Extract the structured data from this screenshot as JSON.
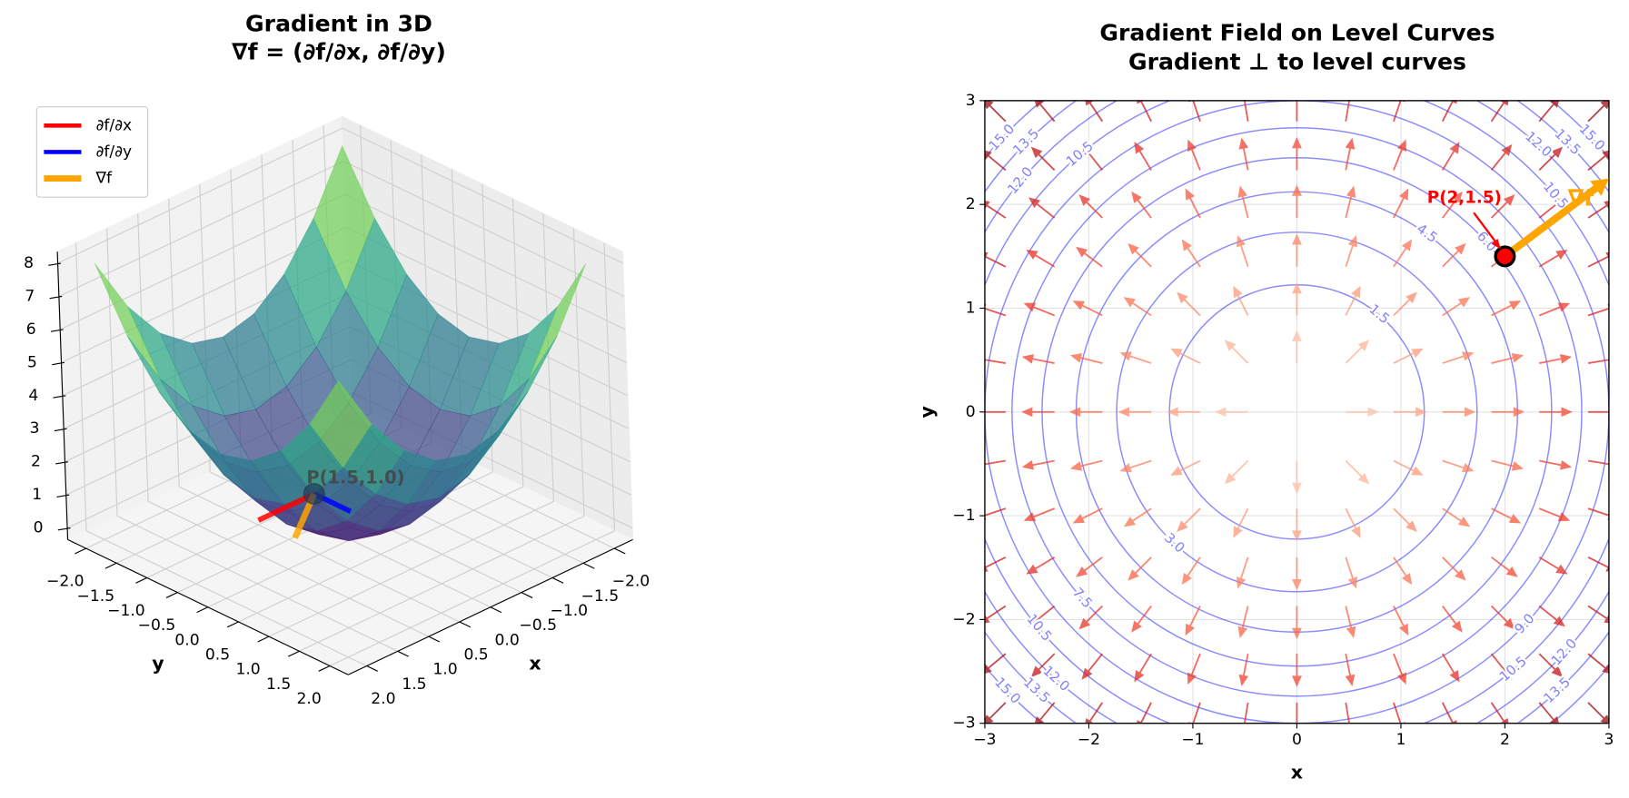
{
  "chart_data": [
    {
      "type": "surface3d",
      "title": [
        "Gradient in 3D",
        "∇f = (∂f/∂x, ∂f/∂y)"
      ],
      "xlabel": "x",
      "ylabel": "y",
      "x": [
        -2,
        -1.5,
        -1,
        -0.5,
        0,
        0.5,
        1,
        1.5,
        2
      ],
      "y": [
        -2,
        -1.5,
        -1,
        -0.5,
        0,
        0.5,
        1,
        1.5,
        2
      ],
      "z": [
        [
          8,
          6.25,
          5,
          4.25,
          4,
          4.25,
          5,
          6.25,
          8
        ],
        [
          6.25,
          4.5,
          3.25,
          2.5,
          2.25,
          2.5,
          3.25,
          4.5,
          6.25
        ],
        [
          5,
          3.25,
          2,
          1.25,
          1,
          1.25,
          2,
          3.25,
          5
        ],
        [
          4.25,
          2.5,
          1.25,
          0.5,
          0.25,
          0.5,
          1.25,
          2.5,
          4.25
        ],
        [
          4,
          2.25,
          1,
          0.25,
          0,
          0.25,
          1,
          2.25,
          4
        ],
        [
          4.25,
          2.5,
          1.25,
          0.5,
          0.25,
          0.5,
          1.25,
          2.5,
          4.25
        ],
        [
          5,
          3.25,
          2,
          1.25,
          1,
          1.25,
          2,
          3.25,
          5
        ],
        [
          6.25,
          4.5,
          3.25,
          2.5,
          2.25,
          2.5,
          3.25,
          4.5,
          6.25
        ],
        [
          8,
          6.25,
          5,
          4.25,
          4,
          4.25,
          5,
          6.25,
          8
        ]
      ],
      "colormap": "viridis",
      "xlim": [
        -2,
        2
      ],
      "ylim": [
        -2,
        2
      ],
      "zlim": [
        0,
        8
      ],
      "xticks": [
        {
          "value": -2,
          "label": "−2.0"
        },
        {
          "value": -1.5,
          "label": "−1.5"
        },
        {
          "value": -1,
          "label": "−1.0"
        },
        {
          "value": -0.5,
          "label": "−0.5"
        },
        {
          "value": 0,
          "label": "0.0"
        },
        0.5,
        {
          "value": 1,
          "label": "1.0"
        },
        1.5,
        {
          "value": 2,
          "label": "2.0"
        }
      ],
      "yticks": [
        {
          "value": -2,
          "label": "−2.0"
        },
        {
          "value": -1.5,
          "label": "−1.5"
        },
        {
          "value": -1,
          "label": "−1.0"
        },
        {
          "value": -0.5,
          "label": "−0.5"
        },
        {
          "value": 0,
          "label": "0.0"
        },
        0.5,
        {
          "value": 1,
          "label": "1.0"
        },
        1.5,
        {
          "value": 2,
          "label": "2.0"
        }
      ],
      "zticks": [
        0,
        1,
        2,
        3,
        4,
        5,
        6,
        7,
        8
      ],
      "point": {
        "x": 1.5,
        "y": 1.0,
        "z": 3.25,
        "label": "P(1.5,1.0)"
      },
      "series": [
        {
          "name": "∂f/∂x",
          "color": "#ff0000",
          "dx": 3,
          "dy": 0
        },
        {
          "name": "∂f/∂y",
          "color": "#0000ff",
          "dx": 0,
          "dy": 2
        },
        {
          "name": "∇f",
          "color": "#ffa500",
          "dx": 3,
          "dy": 2
        }
      ],
      "legend": "upper left"
    },
    {
      "type": "contour_quiver",
      "title": [
        "Gradient Field on Level Curves",
        "Gradient ⊥ to level curves"
      ],
      "xlabel": "x",
      "ylabel": "y",
      "xlim": [
        -3,
        3
      ],
      "ylim": [
        -3,
        3
      ],
      "xticks": [
        {
          "value": -3,
          "label": "−3"
        },
        {
          "value": -2,
          "label": "−2"
        },
        {
          "value": -1,
          "label": "−1"
        },
        0,
        1,
        2,
        3
      ],
      "yticks": [
        {
          "value": -3,
          "label": "−3"
        },
        {
          "value": -2,
          "label": "−2"
        },
        {
          "value": -1,
          "label": "−1"
        },
        0,
        1,
        2,
        3
      ],
      "grid": true,
      "levels": [
        1.5,
        {
          "value": 3,
          "label": "3.0"
        },
        4.5,
        {
          "value": 6,
          "label": "6.0"
        },
        7.5,
        {
          "value": 9,
          "label": "9.0"
        },
        10.5,
        {
          "value": 12,
          "label": "12.0"
        },
        13.5,
        {
          "value": 15,
          "label": "15.0"
        }
      ],
      "contour_color": "#0000ff",
      "quiver": {
        "x": [
          -2.8,
          -2.33,
          -1.87,
          -1.4,
          -0.93,
          -0.47,
          0,
          0.47,
          0.93,
          1.4,
          1.87,
          2.33,
          2.8
        ],
        "y": [
          -2.8,
          -2.33,
          -1.87,
          -1.4,
          -0.93,
          -0.47,
          0,
          0.47,
          0.93,
          1.4,
          1.87,
          2.33,
          2.8
        ],
        "u": [
          -5.6,
          -4.67,
          -3.73,
          -2.8,
          -1.87,
          -0.93,
          0,
          0.93,
          1.87,
          2.8,
          3.73,
          4.67,
          5.6
        ],
        "v": [
          -5.6,
          -4.67,
          -3.73,
          -2.8,
          -1.87,
          -0.93,
          0,
          0.93,
          1.87,
          2.8,
          3.73,
          4.67,
          5.6
        ],
        "colormap": "Reds"
      },
      "point": {
        "x": 2,
        "y": 1.5,
        "label": "P(2,1.5)",
        "color": "#ff0000"
      },
      "gradient": {
        "u": 4,
        "v": 3,
        "label": "∇f",
        "color": "#ffa500"
      }
    }
  ]
}
